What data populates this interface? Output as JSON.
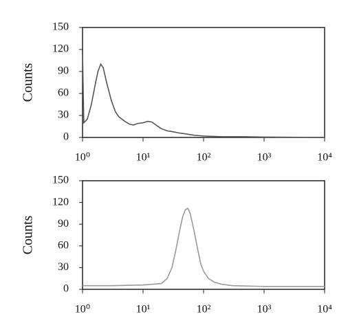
{
  "chart_data": [
    {
      "type": "line",
      "ylabel": "Counts",
      "xscale": "log",
      "xlim": [
        1,
        10000
      ],
      "ylim": [
        0,
        150
      ],
      "xticks": [
        {
          "value": 1,
          "label": "10⁰"
        },
        {
          "value": 10,
          "label": "10¹"
        },
        {
          "value": 100,
          "label": "10²"
        },
        {
          "value": 1000,
          "label": "10³"
        },
        {
          "value": 10000,
          "label": "10⁴"
        }
      ],
      "yticks": [
        0,
        30,
        60,
        90,
        120,
        150
      ],
      "color": "#555555",
      "x": [
        1,
        1.05,
        1.2,
        1.4,
        1.6,
        1.8,
        2.0,
        2.2,
        2.5,
        3,
        3.5,
        4,
        5,
        6,
        7,
        8,
        10,
        12,
        14,
        17,
        20,
        25,
        30,
        40,
        50,
        70,
        100,
        200,
        500,
        1000,
        10000
      ],
      "values": [
        115,
        20,
        25,
        45,
        70,
        90,
        100,
        95,
        75,
        50,
        35,
        28,
        22,
        18,
        17,
        19,
        20,
        22,
        21,
        16,
        12,
        9,
        8,
        6,
        5,
        3,
        2,
        1,
        1,
        0.5,
        0
      ]
    },
    {
      "type": "line",
      "ylabel": "Counts",
      "xscale": "log",
      "xlim": [
        1,
        10000
      ],
      "ylim": [
        0,
        150
      ],
      "xticks": [
        {
          "value": 1,
          "label": "10⁰"
        },
        {
          "value": 10,
          "label": "10¹"
        },
        {
          "value": 100,
          "label": "10²"
        },
        {
          "value": 1000,
          "label": "10³"
        },
        {
          "value": 10000,
          "label": "10⁴"
        }
      ],
      "yticks": [
        0,
        30,
        60,
        90,
        120,
        150
      ],
      "color": "#9a9a9a",
      "x": [
        1,
        3,
        10,
        20,
        25,
        30,
        35,
        40,
        45,
        50,
        55,
        60,
        70,
        80,
        90,
        100,
        120,
        150,
        200,
        300,
        1000,
        10000
      ],
      "values": [
        5,
        5,
        6,
        8,
        15,
        30,
        55,
        80,
        100,
        110,
        112,
        105,
        80,
        55,
        35,
        25,
        15,
        10,
        7,
        5,
        4,
        4
      ]
    }
  ]
}
